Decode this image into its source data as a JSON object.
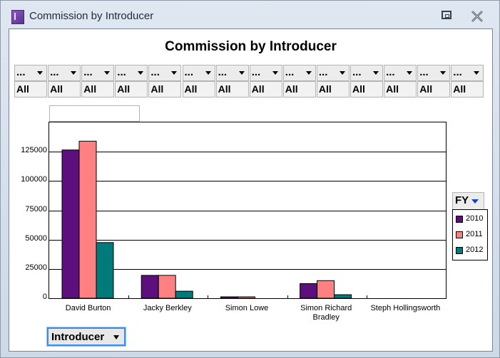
{
  "window": {
    "title": "Commission by Introducer",
    "icon": "app-icon",
    "buttons": [
      "restore-icon",
      "close-icon"
    ]
  },
  "filters": [
    {
      "name": "...",
      "value": "All"
    },
    {
      "name": "...",
      "value": "All"
    },
    {
      "name": "...",
      "value": "All"
    },
    {
      "name": "...",
      "value": "All"
    },
    {
      "name": "...",
      "value": "All"
    },
    {
      "name": "...",
      "value": "All"
    },
    {
      "name": "...",
      "value": "All"
    },
    {
      "name": "...",
      "value": "All"
    },
    {
      "name": "...",
      "value": "All"
    },
    {
      "name": "...",
      "value": "All"
    },
    {
      "name": "...",
      "value": "All"
    },
    {
      "name": "...",
      "value": "All"
    },
    {
      "name": "...",
      "value": "All"
    },
    {
      "name": "...",
      "value": "All"
    }
  ],
  "legend_field": {
    "label": "FY"
  },
  "row_field": {
    "label": "Introducer"
  },
  "chart_data": {
    "type": "bar",
    "title": "Commission by Introducer",
    "xlabel": "",
    "ylabel": "",
    "categories": [
      "David Burton",
      "Jacky Berkley",
      "Simon Lowe",
      "Simon Richard Bradley",
      "Steph Hollingsworth"
    ],
    "category_lines": [
      [
        "David Burton"
      ],
      [
        "Jacky Berkley"
      ],
      [
        "Simon Lowe"
      ],
      [
        "Simon Richard",
        "Bradley"
      ],
      [
        "Steph Hollingsworth"
      ]
    ],
    "series": [
      {
        "name": "2010",
        "color": "#5c0f7d",
        "values": [
          126500,
          19500,
          1200,
          12500,
          0
        ]
      },
      {
        "name": "2011",
        "color": "#ff8080",
        "values": [
          134000,
          19500,
          1200,
          15000,
          0
        ]
      },
      {
        "name": "2012",
        "color": "#007a7a",
        "values": [
          47500,
          6000,
          0,
          3000,
          0
        ]
      }
    ],
    "ylim": [
      0,
      150000
    ],
    "yticks": [
      {
        "value": 0,
        "label": "0"
      },
      {
        "value": 25000,
        "label": "25000"
      },
      {
        "value": 50000,
        "label": "50000"
      },
      {
        "value": 75000,
        "label": "75000"
      },
      {
        "value": 100000,
        "label": "100000"
      },
      {
        "value": 125000,
        "label": "125000"
      }
    ],
    "grid": true,
    "legend_position": "right"
  }
}
